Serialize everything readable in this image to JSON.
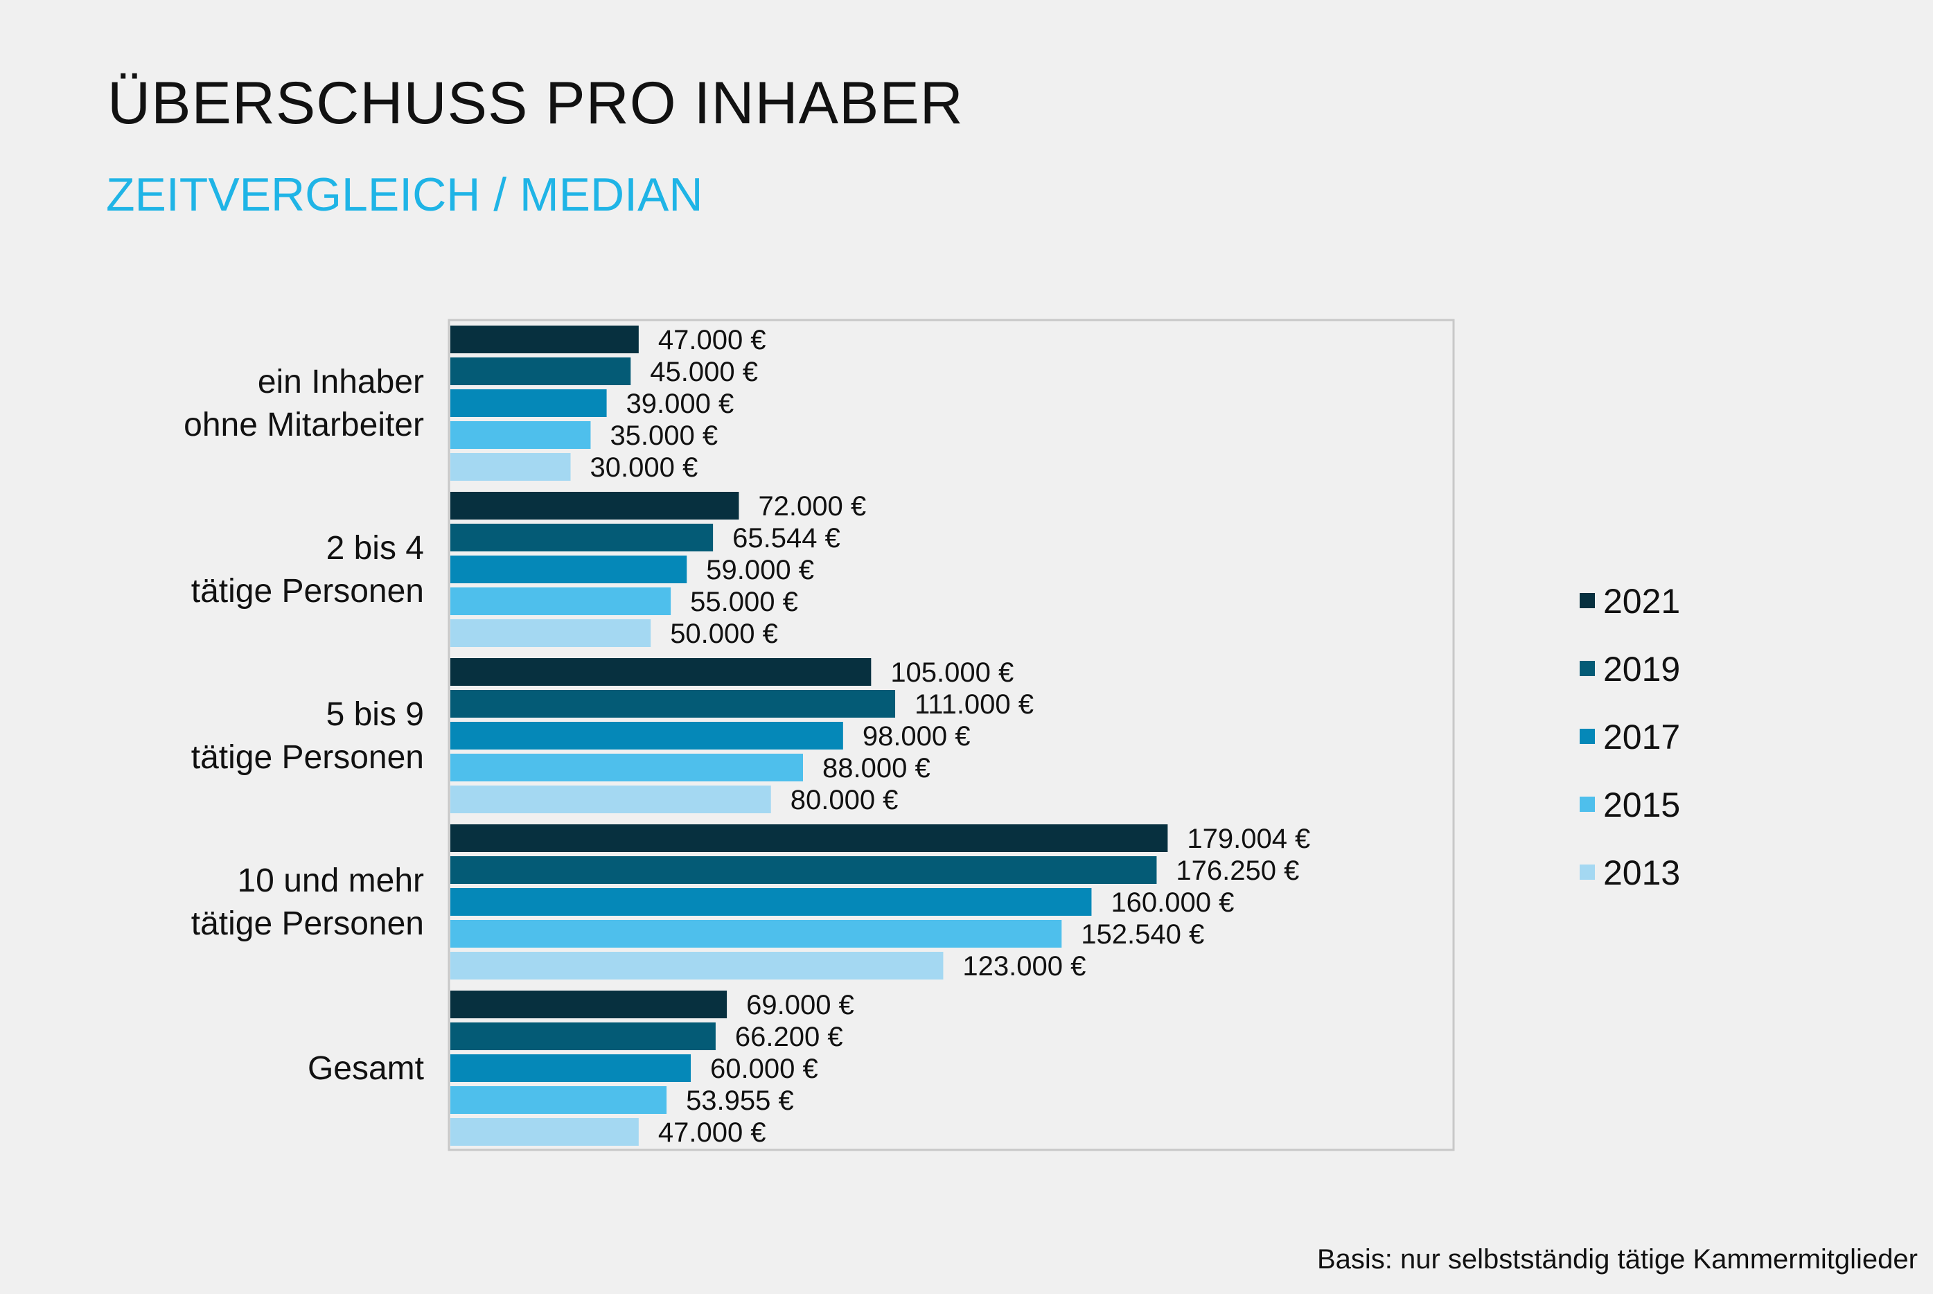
{
  "title": "ÜBERSCHUSS PRO INHABER",
  "subtitle": "ZEITVERGLEICH / MEDIAN",
  "footnote": "Basis: nur selbstständig tätige Kammermitglieder",
  "chart_data": {
    "type": "bar",
    "orientation": "horizontal",
    "categories": [
      [
        "ein Inhaber",
        "ohne Mitarbeiter"
      ],
      [
        "2 bis 4",
        "tätige Personen"
      ],
      [
        "5 bis 9",
        "tätige Personen"
      ],
      [
        "10 und mehr",
        "tätige Personen"
      ],
      [
        "Gesamt"
      ]
    ],
    "series": [
      {
        "name": "2021",
        "color": "#07303f",
        "values": [
          47000,
          72000,
          105000,
          179004,
          69000
        ],
        "labels": [
          "47.000 €",
          "72.000 €",
          "105.000 €",
          "179.004 €",
          "69.000 €"
        ]
      },
      {
        "name": "2019",
        "color": "#045b76",
        "values": [
          45000,
          65544,
          111000,
          176250,
          66200
        ],
        "labels": [
          "45.000 €",
          "65.544 €",
          "111.000 €",
          "176.250 €",
          "66.200 €"
        ]
      },
      {
        "name": "2017",
        "color": "#0588b8",
        "values": [
          39000,
          59000,
          98000,
          160000,
          60000
        ],
        "labels": [
          "39.000 €",
          "59.000 €",
          "98.000 €",
          "160.000 €",
          "60.000 €"
        ]
      },
      {
        "name": "2015",
        "color": "#4ebfec",
        "values": [
          35000,
          55000,
          88000,
          152540,
          53955
        ],
        "labels": [
          "35.000 €",
          "55.000 €",
          "88.000 €",
          "152.540 €",
          "53.955 €"
        ]
      },
      {
        "name": "2013",
        "color": "#a4d8f2",
        "values": [
          30000,
          50000,
          80000,
          123000,
          47000
        ],
        "labels": [
          "30.000 €",
          "50.000 €",
          "80.000 €",
          "123.000 €",
          "47.000 €"
        ]
      }
    ],
    "xlim": [
      0,
      250000
    ],
    "grid": false,
    "legend": "right"
  }
}
